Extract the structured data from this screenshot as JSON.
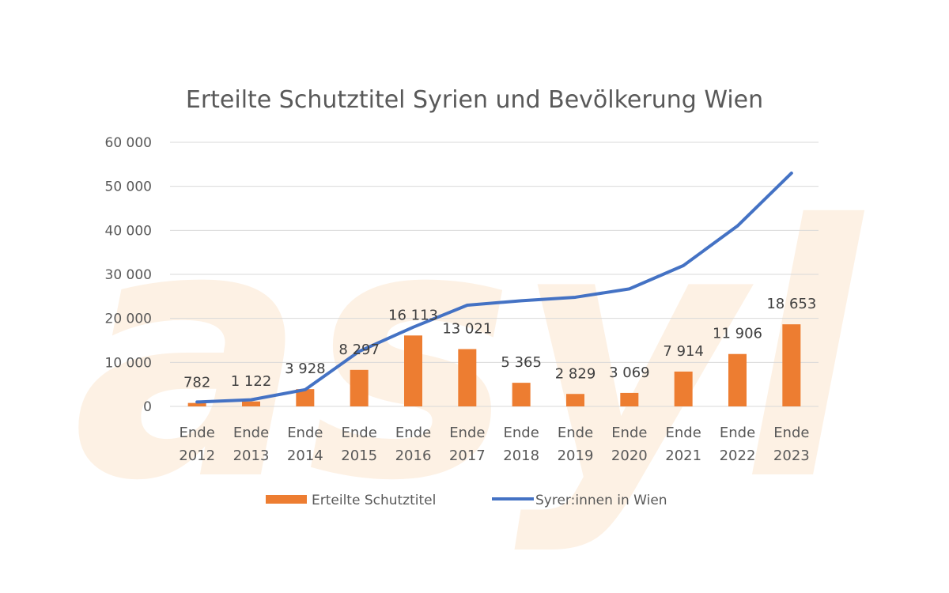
{
  "chart_data": {
    "type": "bar",
    "title": "Erteilte Schutztitel Syrien und Bevölkerung Wien",
    "watermark": "asyl",
    "categories": [
      [
        "Ende",
        "2012"
      ],
      [
        "Ende",
        "2013"
      ],
      [
        "Ende",
        "2014"
      ],
      [
        "Ende",
        "2015"
      ],
      [
        "Ende",
        "2016"
      ],
      [
        "Ende",
        "2017"
      ],
      [
        "Ende",
        "2018"
      ],
      [
        "Ende",
        "2019"
      ],
      [
        "Ende",
        "2020"
      ],
      [
        "Ende",
        "2021"
      ],
      [
        "Ende",
        "2022"
      ],
      [
        "Ende",
        "2023"
      ]
    ],
    "ylim": [
      0,
      60000
    ],
    "yticks": [
      0,
      10000,
      20000,
      30000,
      40000,
      50000,
      60000
    ],
    "ytick_labels": [
      "0",
      "10 000",
      "20 000",
      "30 000",
      "40 000",
      "50 000",
      "60 000"
    ],
    "grid": true,
    "legend_position": "bottom",
    "series": [
      {
        "name": "Erteilte Schutztitel",
        "type": "bar",
        "color": "#ed7d31",
        "values": [
          782,
          1122,
          3928,
          8297,
          16113,
          13021,
          5365,
          2829,
          3069,
          7914,
          11906,
          18653
        ],
        "labels": [
          "782",
          "1 122",
          "3 928",
          "8 297",
          "16 113",
          "13 021",
          "5 365",
          "2 829",
          "3 069",
          "7 914",
          "11 906",
          "18 653"
        ]
      },
      {
        "name": "Syrer:innen in Wien",
        "type": "line",
        "color": "#4472c4",
        "values": [
          1000,
          1500,
          3800,
          12500,
          18000,
          23000,
          24000,
          24800,
          26700,
          32000,
          41000,
          53000
        ]
      }
    ]
  }
}
